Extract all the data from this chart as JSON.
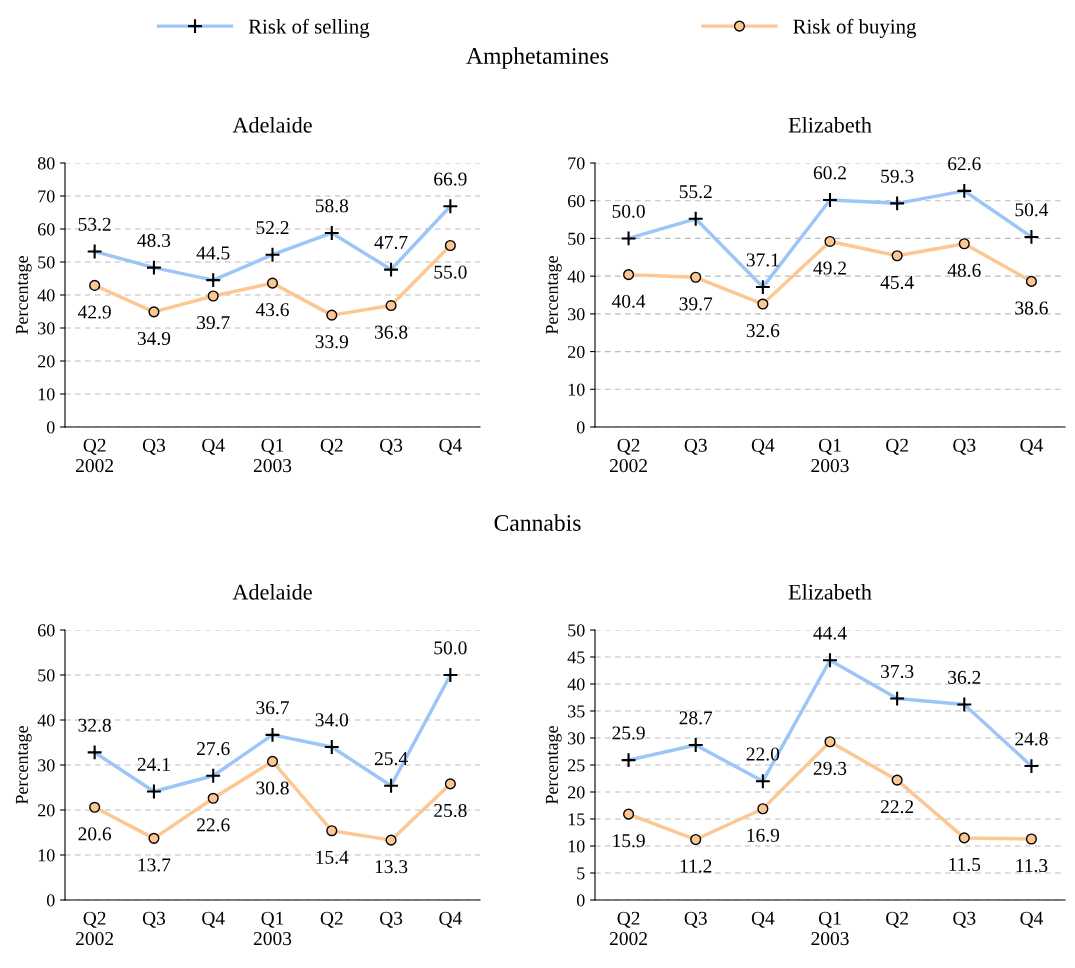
{
  "chart_data": [
    {
      "type": "line",
      "title": "Adelaide",
      "ylabel": "Percentage",
      "annotations": [
        "Amphetamines"
      ],
      "legend": "top",
      "grid": "y",
      "categories": [
        "Q2\n2002",
        "Q3",
        "Q4",
        "Q1\n2003",
        "Q2",
        "Q3",
        "Q4"
      ],
      "ylim": [
        0,
        80
      ],
      "yticks": [
        0,
        10,
        20,
        30,
        40,
        50,
        60,
        70,
        80
      ],
      "series": [
        {
          "name": "Risk of selling",
          "color": "#9cc6f7",
          "marker": "cross",
          "values": [
            53.2,
            48.3,
            44.5,
            52.2,
            58.8,
            47.7,
            66.9
          ],
          "value_labels": [
            "53.2",
            "48.3",
            "44.5",
            "52.2",
            "58.8",
            "47.7",
            "66.9"
          ]
        },
        {
          "name": "Risk of buying",
          "color": "#fcc793",
          "marker": "circle",
          "values": [
            42.9,
            34.9,
            39.7,
            43.6,
            33.9,
            36.8,
            55.0
          ],
          "value_labels": [
            "42.9",
            "34.9",
            "39.7",
            "43.6",
            "33.9",
            "36.8",
            "55.0"
          ]
        }
      ]
    },
    {
      "type": "line",
      "title": "Elizabeth",
      "ylabel": "Percentage",
      "grid": "y",
      "categories": [
        "Q2\n2002",
        "Q3",
        "Q4",
        "Q1\n2003",
        "Q2",
        "Q3",
        "Q4"
      ],
      "ylim": [
        0,
        70
      ],
      "yticks": [
        0,
        10,
        20,
        30,
        40,
        50,
        60,
        70
      ],
      "series": [
        {
          "color": "#9cc6f7",
          "marker": "cross",
          "values": [
            50.0,
            55.2,
            37.1,
            60.2,
            59.3,
            62.6,
            50.4
          ],
          "value_labels": [
            "50.0",
            "55.2",
            "37.1",
            "60.2",
            "59.3",
            "62.6",
            "50.4"
          ]
        },
        {
          "color": "#fcc793",
          "marker": "circle",
          "values": [
            40.4,
            39.7,
            32.6,
            49.2,
            45.4,
            48.6,
            38.6
          ],
          "value_labels": [
            "40.4",
            "39.7",
            "32.6",
            "49.2",
            "45.4",
            "48.6",
            "38.6"
          ]
        }
      ]
    },
    {
      "type": "line",
      "title": "Adelaide",
      "ylabel": "Percentage",
      "annotations": [
        "Cannabis"
      ],
      "grid": "y",
      "categories": [
        "Q2\n2002",
        "Q3",
        "Q4",
        "Q1\n2003",
        "Q2",
        "Q3",
        "Q4"
      ],
      "ylim": [
        0,
        60
      ],
      "yticks": [
        0,
        10,
        20,
        30,
        40,
        50,
        60
      ],
      "series": [
        {
          "color": "#9cc6f7",
          "marker": "cross",
          "values": [
            32.8,
            24.1,
            27.6,
            36.7,
            34.0,
            25.4,
            50.0
          ],
          "value_labels": [
            "32.8",
            "24.1",
            "27.6",
            "36.7",
            "34.0",
            "25.4",
            "50.0"
          ]
        },
        {
          "color": "#fcc793",
          "marker": "circle",
          "values": [
            20.6,
            13.7,
            22.6,
            30.8,
            15.4,
            13.3,
            25.8
          ],
          "value_labels": [
            "20.6",
            "13.7",
            "22.6",
            "30.8",
            "15.4",
            "13.3",
            "25.8"
          ]
        }
      ]
    },
    {
      "type": "line",
      "title": "Elizabeth",
      "ylabel": "Percentage",
      "grid": "y",
      "categories": [
        "Q2\n2002",
        "Q3",
        "Q4",
        "Q1\n2003",
        "Q2",
        "Q3",
        "Q4"
      ],
      "ylim": [
        0,
        50
      ],
      "yticks": [
        0,
        5,
        10,
        15,
        20,
        25,
        30,
        35,
        40,
        45,
        50
      ],
      "series": [
        {
          "color": "#9cc6f7",
          "marker": "cross",
          "values": [
            25.9,
            28.7,
            22.0,
            44.4,
            37.3,
            36.2,
            24.8
          ],
          "value_labels": [
            "25.9",
            "28.7",
            "22.0",
            "44.4",
            "37.3",
            "36.2",
            "24.8"
          ]
        },
        {
          "color": "#fcc793",
          "marker": "circle",
          "values": [
            15.9,
            11.2,
            16.9,
            29.3,
            22.2,
            11.5,
            11.3
          ],
          "value_labels": [
            "15.9",
            "11.2",
            "16.9",
            "29.3",
            "22.2",
            "11.5",
            "11.3"
          ]
        }
      ]
    }
  ]
}
